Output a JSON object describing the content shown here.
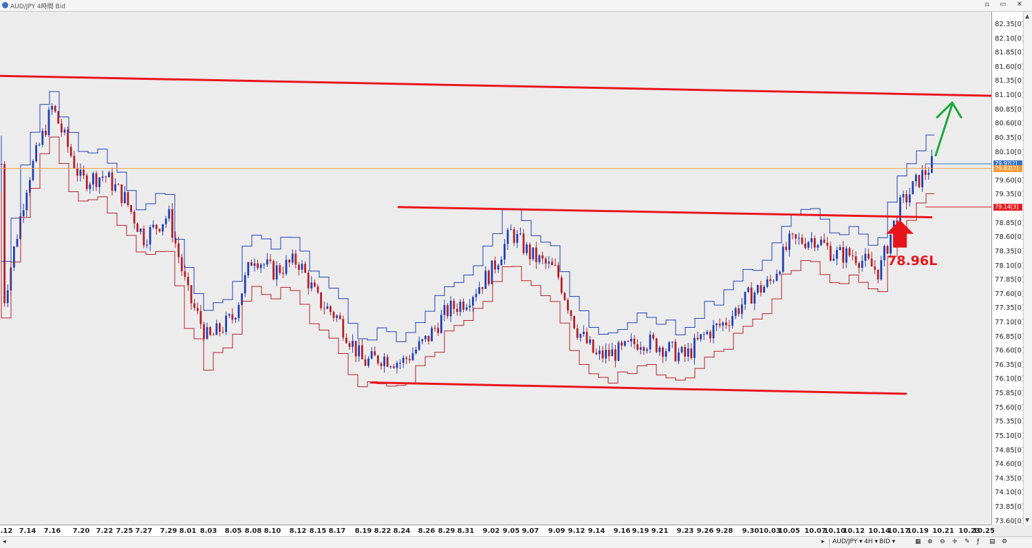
{
  "window": {
    "title": "AUD/JPY 4時間 Bid",
    "buttons": "▫ ▭ ✕"
  },
  "annotation": "78.96L",
  "status_bar": {
    "symbol": "AUD/JPY ▾",
    "timeframe": "4H ▾",
    "price_type": "BID ▾",
    "tool_icons": [
      "candle-type-icon",
      "zoom-in-icon",
      "zoom-out-icon",
      "crosshair-icon",
      "draw-icon",
      "indicator-icon",
      "layout-icon",
      "settings-icon"
    ]
  },
  "colors": {
    "up": "#1f3fb3",
    "down": "#b31f2a",
    "trendline": "#e8141c",
    "arrow_up": "#1aa83a",
    "hline_orange": "#f0a050",
    "price_blue": "#3a6fc2",
    "price_orange": "#f39a38",
    "price_red": "#e21d22"
  },
  "price_tags": [
    {
      "label": "79.9?[?]",
      "price": 79.9,
      "color": "#3a6fc2"
    },
    {
      "label": "79.82[7]",
      "price": 79.82,
      "color": "#f39a38"
    },
    {
      "label": "79.14[3]",
      "price": 79.14,
      "color": "#e21d22"
    }
  ],
  "chart_data": {
    "type": "candlestick",
    "symbol": "AUD/JPY",
    "timeframe": "4時間",
    "x_tick_labels": [
      "7.12",
      "7.14",
      "7.16",
      "7.20",
      "7.22",
      "7.25",
      "7.27",
      "7.29",
      "8.01",
      "8.03",
      "8.05",
      "8.08",
      "8.10",
      "8.12",
      "8.15",
      "8.17",
      "8.19",
      "8.22",
      "8.24",
      "8.26",
      "8.29",
      "8.31",
      "9.02",
      "9.05",
      "9.07",
      "9.09",
      "9.12",
      "9.14",
      "9.16",
      "9.19",
      "9.21",
      "9.23",
      "9.26",
      "9.28",
      "9.30",
      "10.03",
      "10.05",
      "10.07",
      "10.10",
      "10.12",
      "10.14",
      "10.17",
      "10.19",
      "10.21",
      "10.23",
      "10.25"
    ],
    "y_tick_labels": [
      "82.35[0]",
      "82.10[0]",
      "81.85[0]",
      "81.60[0]",
      "81.35[0]",
      "81.10[0]",
      "80.85[0]",
      "80.60[0]",
      "80.35[0]",
      "80.10[0]",
      "79.60[0]",
      "79.35[0]",
      "78.85[0]",
      "78.60[0]",
      "78.35[0]",
      "78.10[0]",
      "77.85[0]",
      "77.60[0]",
      "77.35[0]",
      "77.10[0]",
      "76.85[0]",
      "76.60[0]",
      "76.35[0]",
      "76.10[0]",
      "75.85[0]",
      "75.60[0]",
      "75.35[0]",
      "75.10[0]",
      "74.85[0]",
      "74.60[0]",
      "74.35[0]",
      "74.10[0]",
      "73.85[0]",
      "73.60[0]"
    ],
    "ylim": [
      73.6,
      82.6
    ],
    "close_path": [
      [
        "7.12",
        77.5
      ],
      [
        "7.14",
        79.6
      ],
      [
        "7.16",
        80.9
      ],
      [
        "7.20",
        79.6
      ],
      [
        "7.22",
        79.7
      ],
      [
        "7.25",
        79.3
      ],
      [
        "7.27",
        78.6
      ],
      [
        "7.29",
        79.0
      ],
      [
        "8.01",
        77.6
      ],
      [
        "8.03",
        76.8
      ],
      [
        "8.05",
        77.2
      ],
      [
        "8.08",
        78.3
      ],
      [
        "8.10",
        78.0
      ],
      [
        "8.12",
        78.2
      ],
      [
        "8.15",
        77.5
      ],
      [
        "8.17",
        77.2
      ],
      [
        "8.19",
        76.4
      ],
      [
        "8.22",
        76.5
      ],
      [
        "8.24",
        76.4
      ],
      [
        "8.26",
        76.8
      ],
      [
        "8.29",
        77.3
      ],
      [
        "8.31",
        77.5
      ],
      [
        "9.02",
        78.0
      ],
      [
        "9.05",
        78.7
      ],
      [
        "9.07",
        78.3
      ],
      [
        "9.09",
        78.0
      ],
      [
        "9.12",
        77.0
      ],
      [
        "9.14",
        76.5
      ],
      [
        "9.16",
        76.6
      ],
      [
        "9.19",
        76.8
      ],
      [
        "9.21",
        76.7
      ],
      [
        "9.23",
        76.5
      ],
      [
        "9.26",
        76.9
      ],
      [
        "9.28",
        77.1
      ],
      [
        "9.30",
        77.6
      ],
      [
        "10.03",
        77.8
      ],
      [
        "10.05",
        78.5
      ],
      [
        "10.07",
        78.6
      ],
      [
        "10.10",
        78.3
      ],
      [
        "10.12",
        78.3
      ],
      [
        "10.14",
        78.0
      ],
      [
        "10.17",
        79.1
      ],
      [
        "10.19",
        79.6
      ],
      [
        "10.20",
        79.9
      ]
    ],
    "trendlines": [
      {
        "name": "upper-resistance",
        "from": [
          "7.12",
          81.45
        ],
        "to": [
          "10.25",
          81.1
        ]
      },
      {
        "name": "middle-line",
        "from": [
          "8.19",
          79.14
        ],
        "to": [
          "10.19",
          78.96
        ]
      },
      {
        "name": "lower-support",
        "from": [
          "8.19",
          76.05
        ],
        "to": [
          "10.19",
          75.85
        ]
      }
    ],
    "horizontal_lines": [
      {
        "price": 79.82
      }
    ],
    "grid": false
  }
}
